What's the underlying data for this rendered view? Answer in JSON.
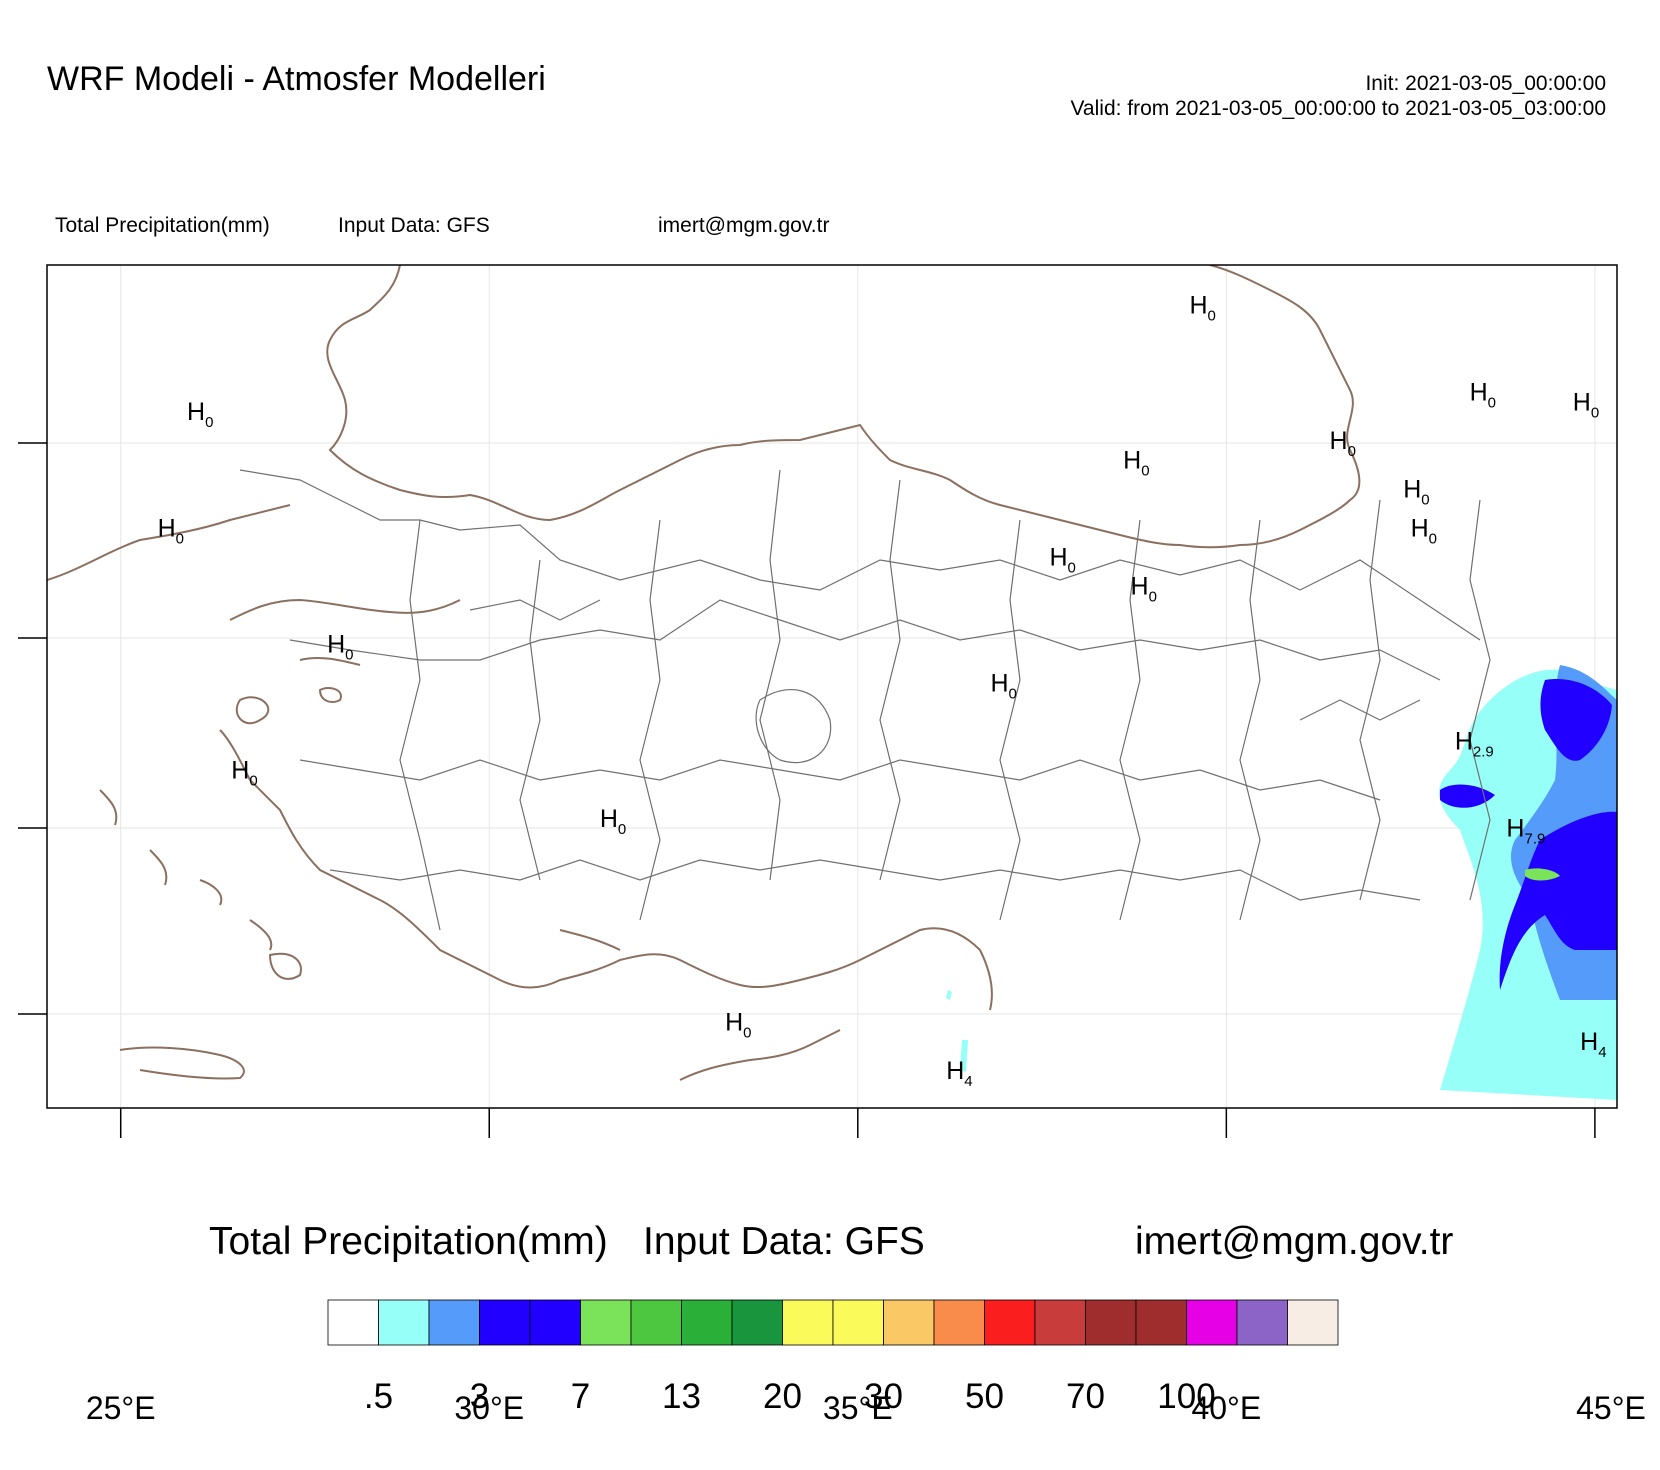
{
  "header": {
    "title": "WRF Modeli - Atmosfer Modelleri",
    "init": "Init: 2021-03-05_00:00:00",
    "valid": "Valid: from 2021-03-05_00:00:00 to 2021-03-05_03:00:00"
  },
  "subheader": {
    "variable": "Total Precipitation(mm)",
    "input": "Input Data: GFS",
    "email": "imert@mgm.gov.tr"
  },
  "map": {
    "region": "Turkey",
    "lon_range": [
      24,
      45.3
    ],
    "lon_ticks": [
      "25°E",
      "30°E",
      "35°E",
      "40°E",
      "45°E"
    ],
    "lon_values": [
      25,
      30,
      35,
      40,
      45
    ],
    "coast_color": "#8B7060",
    "border_color": "#707070",
    "extrema_labels": [
      {
        "letter": "H",
        "value": "0",
        "lon": 25.9,
        "lat": 42.0
      },
      {
        "letter": "H",
        "value": "0",
        "lon": 25.5,
        "lat": 40.8
      },
      {
        "letter": "H",
        "value": "0",
        "lon": 27.8,
        "lat": 39.6
      },
      {
        "letter": "H",
        "value": "0",
        "lon": 26.5,
        "lat": 38.3
      },
      {
        "letter": "H",
        "value": "0",
        "lon": 31.5,
        "lat": 37.8
      },
      {
        "letter": "H",
        "value": "0",
        "lon": 33.2,
        "lat": 35.7
      },
      {
        "letter": "H",
        "value": "0",
        "lon": 39.5,
        "lat": 43.1
      },
      {
        "letter": "H",
        "value": "0",
        "lon": 38.6,
        "lat": 41.5
      },
      {
        "letter": "H",
        "value": "0",
        "lon": 37.6,
        "lat": 40.5
      },
      {
        "letter": "H",
        "value": "0",
        "lon": 38.7,
        "lat": 40.2
      },
      {
        "letter": "H",
        "value": "0",
        "lon": 36.8,
        "lat": 39.2
      },
      {
        "letter": "H",
        "value": "0",
        "lon": 41.4,
        "lat": 41.7
      },
      {
        "letter": "H",
        "value": "0",
        "lon": 42.4,
        "lat": 41.2
      },
      {
        "letter": "H",
        "value": "0",
        "lon": 42.5,
        "lat": 40.8
      },
      {
        "letter": "H",
        "value": "0",
        "lon": 43.3,
        "lat": 42.2
      },
      {
        "letter": "H",
        "value": "0",
        "lon": 44.7,
        "lat": 42.1
      },
      {
        "letter": "H",
        "value": "2.9",
        "lon": 43.1,
        "lat": 38.6
      },
      {
        "letter": "H",
        "value": "7.9",
        "lon": 43.8,
        "lat": 37.7
      },
      {
        "letter": "H",
        "value": "4",
        "lon": 44.8,
        "lat": 35.5
      },
      {
        "letter": "H",
        "value": "4",
        "lon": 36.2,
        "lat": 35.2
      }
    ]
  },
  "colorbar": {
    "title_var": "Total Precipitation(mm)",
    "title_input": "Input Data: GFS",
    "title_email": "imert@mgm.gov.tr",
    "colors": [
      "#ffffff",
      "#96fff8",
      "#549bfa",
      "#2200ff",
      "#2200ff",
      "#7be35a",
      "#4ec740",
      "#2aaf38",
      "#19963d",
      "#fafa5a",
      "#fafa5a",
      "#fac864",
      "#fa8c4b",
      "#fa1e1e",
      "#c83c3c",
      "#a02d2d",
      "#a02d2d",
      "#e600e6",
      "#8c64c8",
      "#f7ede4"
    ],
    "labels": [
      ".5",
      "3",
      "7",
      "13",
      "20",
      "30",
      "50",
      "70",
      "100"
    ]
  }
}
